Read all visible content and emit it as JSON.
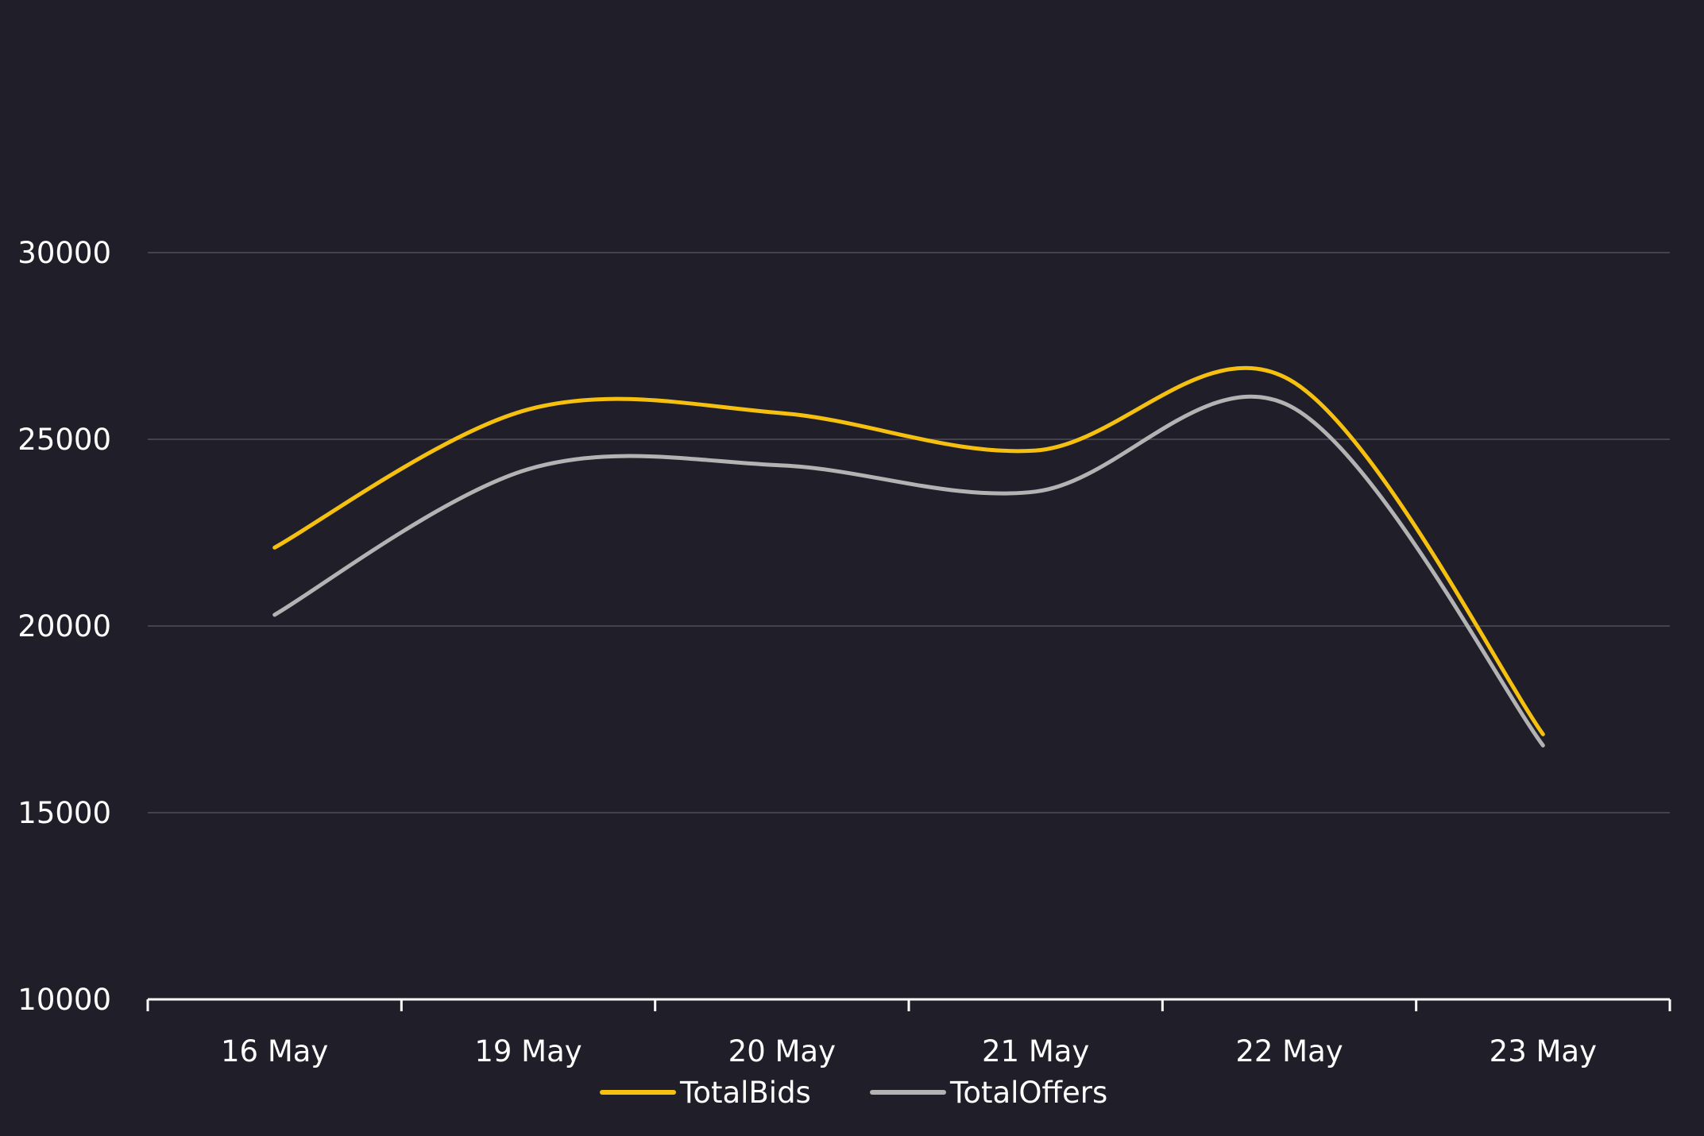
{
  "chart_data": {
    "type": "line",
    "title": "",
    "xlabel": "",
    "ylabel": "",
    "categories": [
      "16 May",
      "19 May",
      "20 May",
      "21 May",
      "22 May",
      "23 May"
    ],
    "ylim": [
      10000,
      30000
    ],
    "yticks": [
      "10000",
      "15000",
      "20000",
      "25000",
      "30000"
    ],
    "grid": true,
    "legend_position": "bottom",
    "series": [
      {
        "name": "TotalBids",
        "color": "#f5c010",
        "values": [
          22100,
          25800,
          25700,
          24700,
          26600,
          17100
        ]
      },
      {
        "name": "TotalOffers",
        "color": "#b3b3b3",
        "values": [
          20300,
          24200,
          24300,
          23600,
          25900,
          16800
        ]
      }
    ]
  }
}
